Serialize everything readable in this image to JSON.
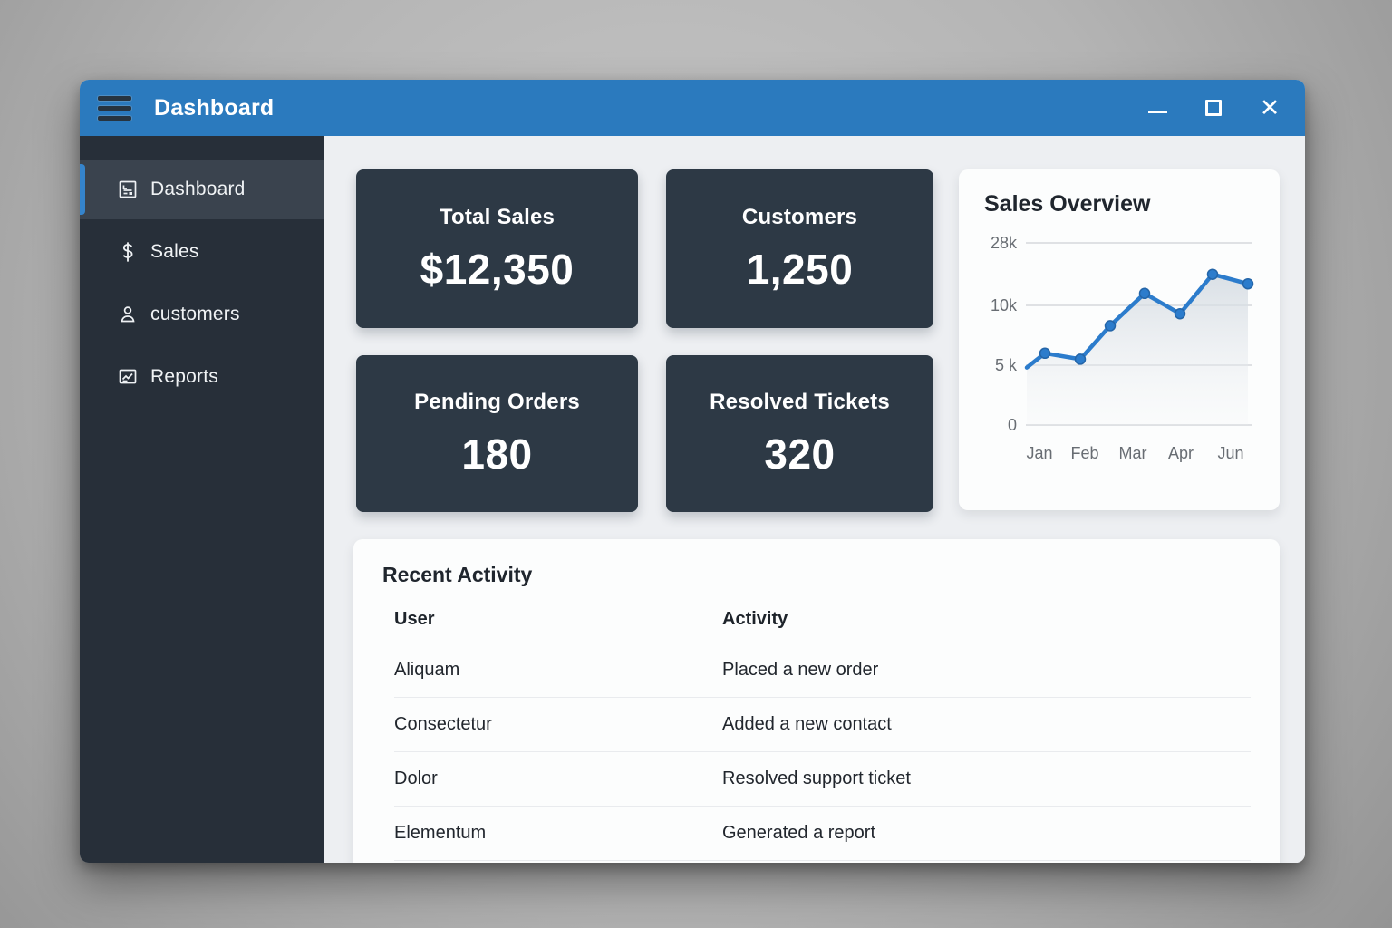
{
  "window": {
    "title": "Dashboard",
    "controls": {
      "minimize": "minimize",
      "maximize": "maximize",
      "close": "close",
      "close_glyph": "✕"
    }
  },
  "sidebar": {
    "items": [
      {
        "label": "Dashboard",
        "icon": "dashboard-icon",
        "active": true
      },
      {
        "label": "Sales",
        "icon": "dollar-icon",
        "active": false
      },
      {
        "label": "customers",
        "icon": "person-icon",
        "active": false
      },
      {
        "label": "Reports",
        "icon": "report-icon",
        "active": false
      }
    ]
  },
  "stats": [
    {
      "label": "Total Sales",
      "value": "$12,350"
    },
    {
      "label": "Customers",
      "value": "1,250"
    },
    {
      "label": "Pending Orders",
      "value": "180"
    },
    {
      "label": "Resolved Tickets",
      "value": "320"
    }
  ],
  "chart_data": {
    "type": "line",
    "title": "Sales Overview",
    "x_tick_labels": [
      "Jan",
      "Feb",
      "Mar",
      "Apr",
      "Jun"
    ],
    "y_tick_labels": [
      "28k",
      "10k",
      "5 k",
      "0"
    ],
    "values": [
      4800,
      6000,
      5500,
      8300,
      11000,
      9300,
      12600,
      11800
    ],
    "ylim": [
      0,
      28000
    ],
    "grid": true,
    "area": true,
    "legend": "none",
    "line_color": "#2c7ccc",
    "dot_stroke_color": "#2465a8",
    "grid_color": "#d5d8dc",
    "tick_color": "#686d73"
  },
  "activity": {
    "title": "Recent Activity",
    "columns": [
      "User",
      "Activity"
    ],
    "rows": [
      [
        "Aliquam",
        "Placed a new order"
      ],
      [
        "Consectetur",
        "Added a new contact"
      ],
      [
        "Dolor",
        "Resolved support ticket"
      ],
      [
        "Elementum",
        "Generated a report"
      ]
    ]
  },
  "colors": {
    "titlebar": "#2b7abe",
    "sidebar": "#272f39",
    "sidebar_active": "#3a434e",
    "accent": "#3584cc",
    "stat_card": "#2d3945",
    "content_bg": "#edeff2",
    "card_bg": "#fcfdfd"
  }
}
